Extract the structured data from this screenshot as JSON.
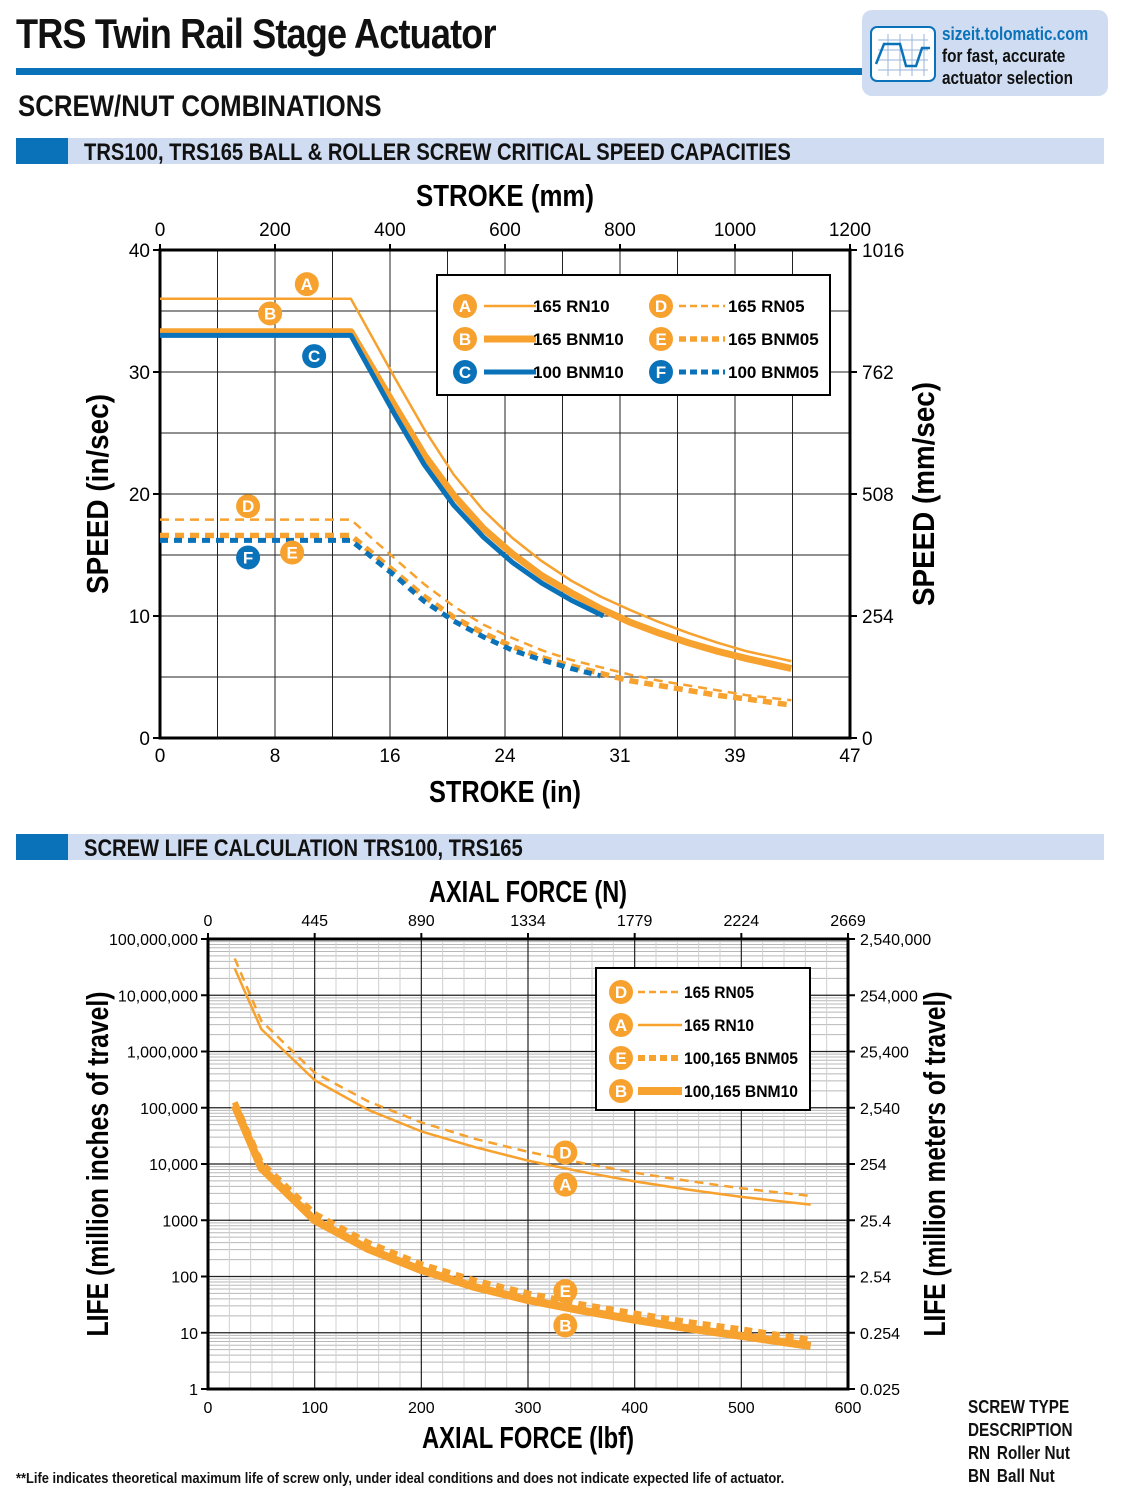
{
  "header": {
    "title": "TRS Twin Rail Stage Actuator",
    "section": "SCREW/NUT COMBINATIONS",
    "sizeit": {
      "url": "sizeit.tolomatic.com",
      "line1": "for fast, accurate",
      "line2": "actuator selection"
    }
  },
  "colors": {
    "orange": "#f7a12f",
    "blue": "#0a72b9",
    "band": "#cfdcf2"
  },
  "chart_data": [
    {
      "type": "line",
      "panel_title": "TRS100, TRS165 BALL & ROLLER SCREW CRITICAL SPEED CAPACITIES",
      "title": "",
      "xlabel": "STROKE (in)",
      "ylabel": "SPEED (in/sec)",
      "x2label": "STROKE (mm)",
      "y2label": "SPEED (mm/sec)",
      "xlim": [
        0,
        47
      ],
      "ylim": [
        0,
        40
      ],
      "grid": true,
      "legend": "top-right",
      "x_ticks": [
        0,
        8,
        16,
        24,
        31,
        39,
        47
      ],
      "x_tick_labels": [
        "0",
        "8",
        "16",
        "24",
        "31",
        "39",
        "47"
      ],
      "y_ticks": [
        0,
        10,
        20,
        30,
        40
      ],
      "y_tick_labels": [
        "0",
        "10",
        "20",
        "30",
        "40"
      ],
      "x2_ticks": [
        "0",
        "200",
        "400",
        "600",
        "800",
        "1000",
        "1200"
      ],
      "y2_ticks": [
        "0",
        "254",
        "508",
        "762",
        "1016"
      ],
      "series": [
        {
          "id": "A",
          "name": "165 RN10",
          "color": "#f7a12f",
          "width": 2.5,
          "dash": "",
          "label_at": [
            10,
            37.2
          ],
          "x": [
            0,
            13,
            16,
            18,
            20,
            22,
            24,
            26,
            28,
            30,
            32,
            34,
            36,
            38,
            40,
            43
          ],
          "y": [
            36,
            36,
            29.5,
            25.3,
            21.6,
            18.7,
            16.4,
            14.5,
            12.9,
            11.6,
            10.5,
            9.5,
            8.6,
            7.8,
            7.1,
            6.3
          ]
        },
        {
          "id": "B",
          "name": "165 BNM10",
          "color": "#f7a12f",
          "width": 7,
          "dash": "",
          "label_at": [
            7.5,
            34.8
          ],
          "x": [
            0,
            13,
            16,
            18,
            20,
            22,
            24,
            26,
            28,
            30,
            32,
            34,
            36,
            38,
            40,
            43
          ],
          "y": [
            33.3,
            33.3,
            27.2,
            23.2,
            19.9,
            17.2,
            15.1,
            13.3,
            11.9,
            10.6,
            9.5,
            8.6,
            7.8,
            7.1,
            6.5,
            5.7
          ]
        },
        {
          "id": "C",
          "name": "100 BNM10",
          "color": "#0a72b9",
          "width": 5,
          "dash": "",
          "label_at": [
            10.5,
            31.3
          ],
          "x": [
            0,
            13,
            16,
            18,
            20,
            22,
            24,
            26,
            28,
            30.2
          ],
          "y": [
            33,
            33,
            26.5,
            22.4,
            19.1,
            16.5,
            14.4,
            12.7,
            11.3,
            10
          ]
        },
        {
          "id": "D",
          "name": "165 RN05",
          "color": "#f7a12f",
          "width": 2.5,
          "dash": "9,6",
          "label_at": [
            6,
            19
          ],
          "x": [
            0,
            13,
            16,
            18,
            20,
            22,
            24,
            26,
            28,
            30,
            32,
            34,
            36,
            38,
            40,
            43
          ],
          "y": [
            17.9,
            17.9,
            14.7,
            12.6,
            10.8,
            9.3,
            8.2,
            7.2,
            6.4,
            5.8,
            5.2,
            4.7,
            4.3,
            3.9,
            3.5,
            3.1
          ]
        },
        {
          "id": "E",
          "name": "165 BNM05",
          "color": "#f7a12f",
          "width": 5.5,
          "dash": "9,6",
          "label_at": [
            9,
            15.2
          ],
          "x": [
            0,
            13,
            16,
            18,
            20,
            22,
            24,
            26,
            28,
            30,
            32,
            34,
            36,
            38,
            40,
            43
          ],
          "y": [
            16.6,
            16.6,
            13.6,
            11.6,
            9.9,
            8.6,
            7.5,
            6.6,
            5.9,
            5.3,
            4.7,
            4.3,
            3.9,
            3.5,
            3.2,
            2.7
          ]
        },
        {
          "id": "F",
          "name": "100 BNM05",
          "color": "#0a72b9",
          "width": 5,
          "dash": "8,6",
          "label_at": [
            6,
            14.8
          ],
          "x": [
            0,
            13,
            16,
            18,
            20,
            22,
            24,
            26,
            28,
            30
          ],
          "y": [
            16.2,
            16.2,
            13.3,
            11.2,
            9.6,
            8.3,
            7.2,
            6.4,
            5.7,
            5.1
          ]
        }
      ]
    },
    {
      "type": "line",
      "panel_title": "SCREW LIFE CALCULATION TRS100, TRS165",
      "title": "",
      "xlabel": "AXIAL FORCE (lbf)",
      "ylabel": "LIFE (million inches of travel)",
      "x2label": "AXIAL FORCE (N)",
      "y2label": "LIFE (million meters of travel)",
      "xlim": [
        0,
        600
      ],
      "ylim": [
        1,
        100000000
      ],
      "yscale": "log",
      "grid": true,
      "legend": "top-right",
      "x_ticks": [
        0,
        100,
        200,
        300,
        400,
        500,
        600
      ],
      "x_tick_labels": [
        "0",
        "100",
        "200",
        "300",
        "400",
        "500",
        "600"
      ],
      "y_tick_labels": [
        "1",
        "10",
        "100",
        "1000",
        "10,000",
        "100,000",
        "1,000,000",
        "10,000,000",
        "100,000,000"
      ],
      "x2_ticks": [
        "0",
        "445",
        "890",
        "1334",
        "1779",
        "2224",
        "2669"
      ],
      "y2_ticks": [
        "0.025",
        "0.254",
        "2.54",
        "25.4",
        "254",
        "2,540",
        "25,400",
        "254,000",
        "2,540,000"
      ],
      "series": [
        {
          "id": "D",
          "name": "165 RN05",
          "color": "#f7a12f",
          "width": 2.5,
          "dash": "9,6",
          "label_at": [
            335,
            16000
          ],
          "x": [
            25,
            50,
            100,
            150,
            200,
            250,
            300,
            350,
            400,
            450,
            500,
            565
          ],
          "y": [
            45000000,
            3500000,
            420000,
            130000,
            55000,
            28000,
            16500,
            10500,
            7000,
            5000,
            3700,
            2700
          ]
        },
        {
          "id": "A",
          "name": "165 RN10",
          "color": "#f7a12f",
          "width": 2.5,
          "dash": "",
          "label_at": [
            335,
            4300
          ],
          "x": [
            25,
            50,
            100,
            150,
            200,
            250,
            300,
            350,
            400,
            450,
            500,
            565
          ],
          "y": [
            30000000,
            2500000,
            310000,
            92000,
            38000,
            20000,
            11500,
            7300,
            4900,
            3500,
            2600,
            1900
          ]
        },
        {
          "id": "E",
          "name": "100,165 BNM05",
          "color": "#f7a12f",
          "width": 6,
          "dash": "8,6",
          "label_at": [
            335,
            55
          ],
          "x": [
            25,
            50,
            100,
            150,
            200,
            250,
            300,
            350,
            400,
            450,
            500,
            565
          ],
          "y": [
            125000,
            10500,
            1300,
            400,
            165,
            85,
            50,
            32,
            22,
            15.5,
            11.5,
            7.5
          ]
        },
        {
          "id": "B",
          "name": "100,165 BNM10",
          "color": "#f7a12f",
          "width": 8,
          "dash": "",
          "label_at": [
            335,
            13.5
          ],
          "x": [
            25,
            50,
            100,
            150,
            200,
            250,
            300,
            350,
            400,
            450,
            500,
            565
          ],
          "y": [
            110000,
            8500,
            1000,
            310,
            130,
            65,
            38,
            25,
            17,
            12,
            8.8,
            5.8
          ]
        }
      ],
      "legend_order": [
        "D",
        "A",
        "E",
        "B"
      ]
    }
  ],
  "footnote": "**Life indicates theoretical maximum life of screw only, under ideal conditions and does not indicate expected life of actuator.",
  "screw_type": {
    "heading1": "SCREW TYPE",
    "heading2": "DESCRIPTION",
    "items": [
      {
        "code": "RN",
        "desc": "Roller Nut"
      },
      {
        "code": "BN",
        "desc": "Ball Nut"
      }
    ]
  }
}
